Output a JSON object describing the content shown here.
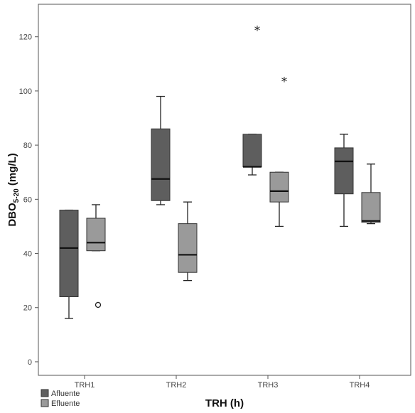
{
  "chart_data": {
    "type": "boxplot",
    "title": "",
    "xlabel": "TRH (h)",
    "ylabel_main": "DBO",
    "ylabel_sub": "5-20",
    "ylabel_unit": " (mg/L)",
    "ylim": [
      -5,
      132
    ],
    "yticks": [
      0,
      20,
      40,
      60,
      80,
      100,
      120
    ],
    "grid": false,
    "legend_position": "bottom-left",
    "categories": [
      "TRH1",
      "TRH2",
      "TRH3",
      "TRH4"
    ],
    "series": [
      {
        "name": "Afluente",
        "color": "#5e5e5e",
        "boxes": [
          {
            "whisker_low": 16,
            "q1": 24,
            "median": 42,
            "q3": 56,
            "whisker_high": 56,
            "outliers": [],
            "extremes": []
          },
          {
            "whisker_low": 58,
            "q1": 59.5,
            "median": 67.5,
            "q3": 86,
            "whisker_high": 98,
            "outliers": [],
            "extremes": []
          },
          {
            "whisker_low": 69,
            "q1": 72,
            "median": 72,
            "q3": 84,
            "whisker_high": 84,
            "outliers": [],
            "extremes": [
              123
            ]
          },
          {
            "whisker_low": 50,
            "q1": 62,
            "median": 74,
            "q3": 79,
            "whisker_high": 84,
            "outliers": [],
            "extremes": []
          }
        ]
      },
      {
        "name": "Efluente",
        "color": "#9a9a9a",
        "boxes": [
          {
            "whisker_low": 41,
            "q1": 41,
            "median": 44,
            "q3": 53,
            "whisker_high": 58,
            "outliers": [
              21
            ],
            "extremes": []
          },
          {
            "whisker_low": 30,
            "q1": 33,
            "median": 39.5,
            "q3": 51,
            "whisker_high": 59,
            "outliers": [],
            "extremes": []
          },
          {
            "whisker_low": 50,
            "q1": 59,
            "median": 63,
            "q3": 70,
            "whisker_high": 70,
            "outliers": [],
            "extremes": [
              104
            ]
          },
          {
            "whisker_low": 51,
            "q1": 51.5,
            "median": 52,
            "q3": 62.5,
            "whisker_high": 73,
            "outliers": [],
            "extremes": []
          }
        ]
      }
    ]
  }
}
